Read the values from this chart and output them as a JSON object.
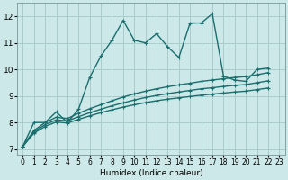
{
  "xlabel": "Humidex (Indice chaleur)",
  "ylabel": "",
  "background_color": "#cce8e8",
  "grid_color": "#aacccc",
  "line_color": "#1a6e6e",
  "xlim": [
    -0.5,
    23.5
  ],
  "ylim": [
    6.8,
    12.5
  ],
  "xticks": [
    0,
    1,
    2,
    3,
    4,
    5,
    6,
    7,
    8,
    9,
    10,
    11,
    12,
    13,
    14,
    15,
    16,
    17,
    18,
    19,
    20,
    21,
    22,
    23
  ],
  "yticks": [
    7,
    8,
    9,
    10,
    11,
    12
  ],
  "series": [
    [
      7.1,
      8.0,
      8.0,
      8.4,
      8.0,
      8.5,
      9.7,
      10.5,
      11.1,
      11.85,
      11.1,
      11.0,
      11.35,
      10.85,
      10.45,
      11.75,
      11.75,
      12.1,
      9.75,
      9.6,
      9.55,
      10.0,
      10.05,
      null
    ],
    [
      7.1,
      7.7,
      8.0,
      8.2,
      8.15,
      8.35,
      8.52,
      8.67,
      8.82,
      8.96,
      9.08,
      9.18,
      9.27,
      9.35,
      9.42,
      9.48,
      9.55,
      9.6,
      9.65,
      9.7,
      9.73,
      9.8,
      9.88,
      null
    ],
    [
      7.1,
      7.65,
      7.92,
      8.1,
      8.06,
      8.22,
      8.37,
      8.5,
      8.63,
      8.74,
      8.85,
      8.94,
      9.02,
      9.09,
      9.15,
      9.21,
      9.27,
      9.31,
      9.36,
      9.4,
      9.43,
      9.5,
      9.57,
      null
    ],
    [
      7.1,
      7.6,
      7.85,
      8.02,
      7.98,
      8.12,
      8.25,
      8.37,
      8.48,
      8.58,
      8.67,
      8.75,
      8.82,
      8.88,
      8.93,
      8.98,
      9.03,
      9.07,
      9.11,
      9.15,
      9.18,
      9.24,
      9.3,
      null
    ]
  ],
  "linewidths": [
    1.0,
    1.0,
    1.0,
    1.0
  ]
}
